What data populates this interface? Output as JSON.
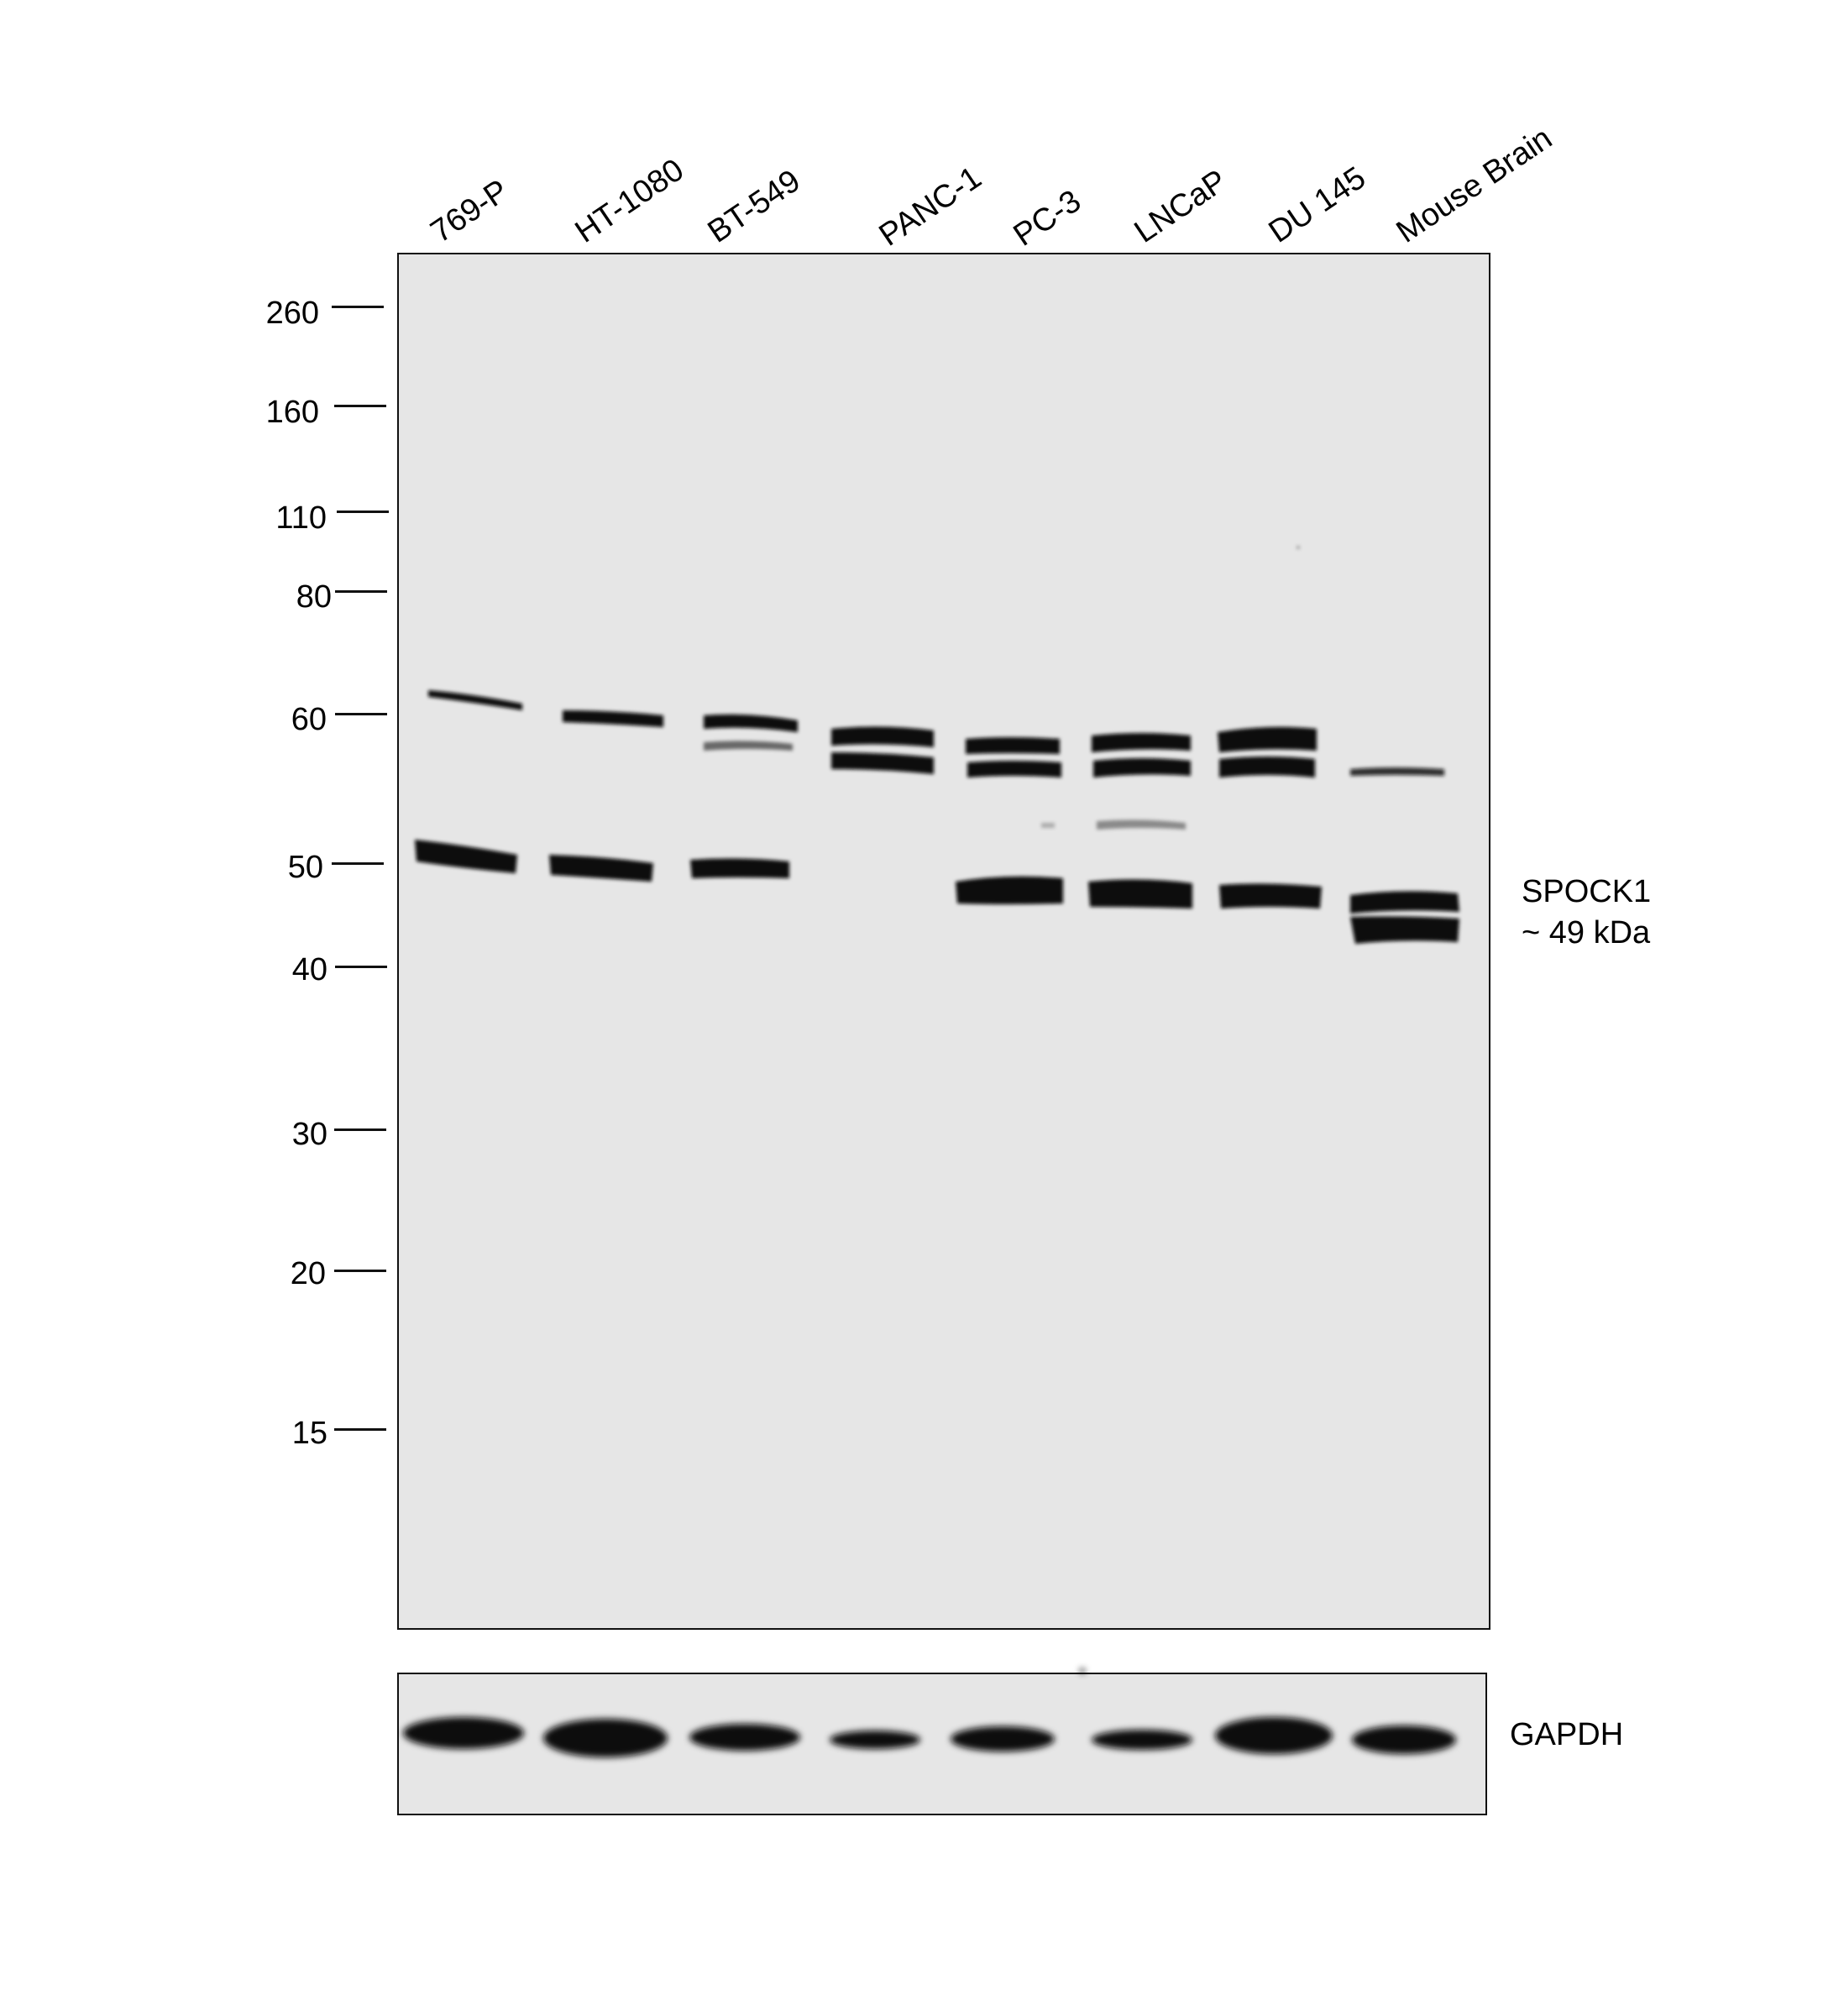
{
  "lanes": [
    "769-P",
    "HT-1080",
    "BT-549",
    "PANC-1",
    "PC-3",
    "LNCaP",
    "DU 145",
    "Mouse Brain"
  ],
  "mw_markers": [
    "260",
    "160",
    "110",
    "80",
    "60",
    "50",
    "40",
    "30",
    "20",
    "15"
  ],
  "target": {
    "name": "SPOCK1",
    "size": "~ 49 kDa"
  },
  "loading_control": "GAPDH",
  "colors": {
    "membrane": "#e6e6e6",
    "band": "#0a0a0a",
    "border": "#111111"
  }
}
